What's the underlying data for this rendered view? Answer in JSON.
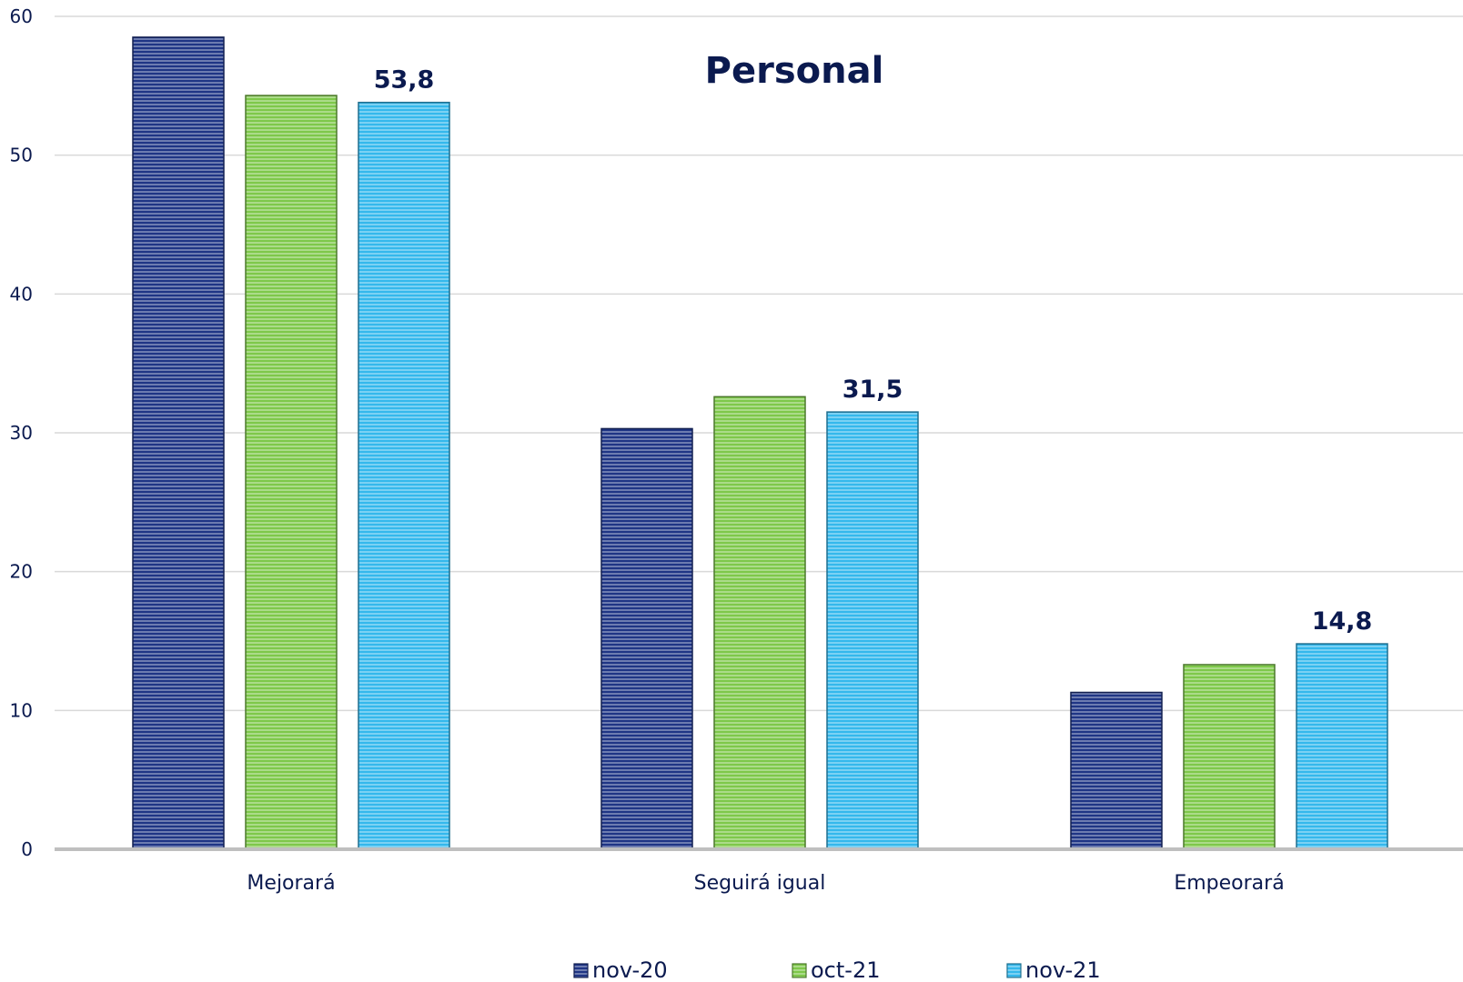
{
  "chart_data": {
    "type": "bar",
    "title": "Personal",
    "xlabel": "",
    "ylabel": "",
    "categories": [
      "Mejorará",
      "Seguirá igual",
      "Empeorará"
    ],
    "series": [
      {
        "name": "nov-20",
        "values": [
          58.5,
          30.3,
          11.3
        ],
        "color": "#1f3585",
        "data_labels": false
      },
      {
        "name": "oct-21",
        "values": [
          54.3,
          32.6,
          13.3
        ],
        "color": "#7ec84a",
        "data_labels": false
      },
      {
        "name": "nov-21",
        "values": [
          53.8,
          31.5,
          14.8
        ],
        "color": "#34b8ec",
        "data_labels": true
      }
    ],
    "data_label_text": [
      "53,8",
      "31,5",
      "14,8"
    ],
    "ylim": [
      0,
      60
    ],
    "yticks": [
      0,
      10,
      20,
      30,
      40,
      50,
      60
    ],
    "grid": true,
    "legend_position": "bottom",
    "bar_style": "horizontal-stripes"
  }
}
